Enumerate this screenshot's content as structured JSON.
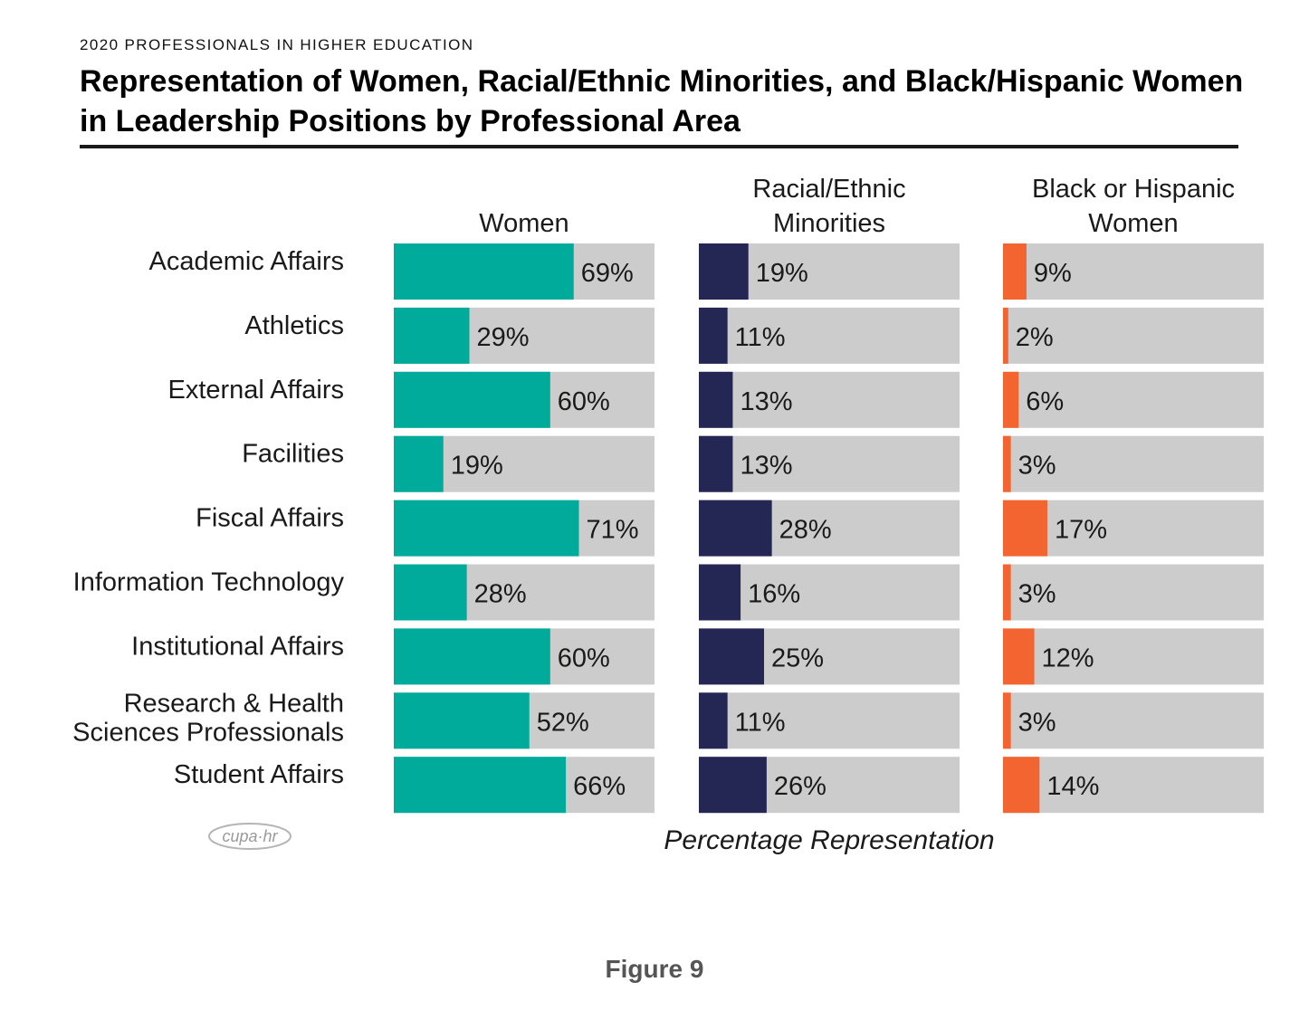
{
  "header": {
    "kicker": "2020 PROFESSIONALS IN HIGHER EDUCATION",
    "title": "Representation of Women, Racial/Ethnic Minorities, and Black/Hispanic Women in Leadership Positions by Professional Area"
  },
  "chart_data": {
    "type": "bar",
    "orientation": "horizontal",
    "title": "Representation of Women, Racial/Ethnic Minorities, and Black/Hispanic Women in Leadership Positions by Professional Area",
    "xlabel": "Percentage Representation",
    "xlim": [
      0,
      100
    ],
    "grid": false,
    "categories": [
      "Academic Affairs",
      "Athletics",
      "External Affairs",
      "Facilities",
      "Fiscal Affairs",
      "Information Technology",
      "Institutional Affairs",
      "Research & Health Sciences Professionals",
      "Student Affairs"
    ],
    "series": [
      {
        "name": "Women",
        "color": "#00ab9b",
        "values": [
          69,
          29,
          60,
          19,
          71,
          28,
          60,
          52,
          66
        ]
      },
      {
        "name": "Racial/Ethnic Minorities",
        "color": "#242753",
        "values": [
          19,
          11,
          13,
          13,
          28,
          16,
          25,
          11,
          26
        ]
      },
      {
        "name": "Black or Hispanic Women",
        "color": "#f26530",
        "values": [
          9,
          2,
          6,
          3,
          17,
          3,
          12,
          3,
          14
        ]
      }
    ],
    "track_color": "#cccccc",
    "value_suffix": "%"
  },
  "footer": {
    "logo_text": "cupa·hr",
    "figure_label": "Figure 9"
  }
}
